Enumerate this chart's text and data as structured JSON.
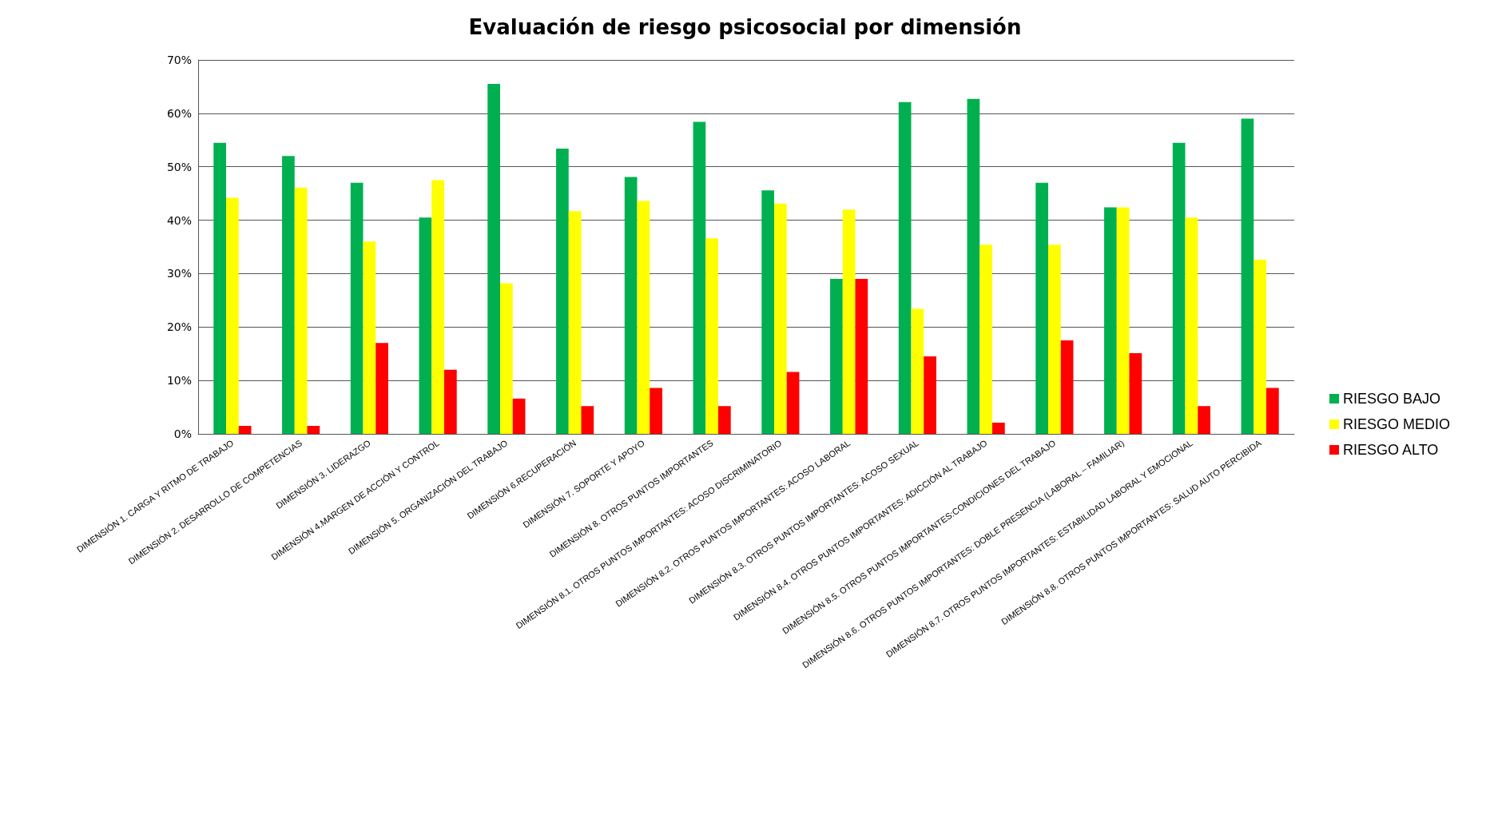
{
  "chart_data": {
    "type": "bar",
    "title": "Evaluación de riesgo psicosocial por dimensión",
    "categories": [
      "DIMENSIÓN 1. CARGA Y RITMO DE TRABAJO",
      "DIMENSIÓN 2. DESARROLLO DE COMPETENCIAS",
      "DIMENSIÓN 3. LIDERAZGO",
      "DIMENSIÓN 4.MARGEN DE ACCIÓN Y CONTROL",
      "DIMENSIÓN 5. ORGANIZACIÓN DEL TRABAJO",
      "DIMENSIÓN 6.RECUPERACIÓN",
      "DIMENSIÓN 7. SOPORTE Y APOYO",
      "DIMENSIÓN 8. OTROS PUNTOS IMPORTANTES",
      "DIMENSIÓN 8.1. OTROS PUNTOS IMPORTANTES: ACOSO DISCRIMINATORIO",
      "DIMENSIÓN 8.2. OTROS PUNTOS IMPORTANTES: ACOSO LABORAL",
      "DIMENSIÓN 8.3. OTROS PUNTOS IMPORTANTES: ACOSO SEXUAL",
      "DIMENSIÓN 8.4. OTROS PUNTOS IMPORTANTES: ADICCIÓN AL TRABAJO",
      "DIMENSIÓN 8.5. OTROS PUNTOS IMPORTANTES:CONDICIONES DEL TRABAJO",
      "DIMENSIÓN 8.6. OTROS PUNTOS IMPORTANTES: DOBLE PRESENCIA (LABORAL – FAMILIAR)",
      "DIMENSIÓN 8.7. OTROS PUNTOS IMPORTANTES: ESTABILIDAD LABORAL Y EMOCIONAL",
      "DIMENSIÓN 8.8. OTROS PUNTOS IMPORTANTES: SALUD AUTO PERCIBIDA"
    ],
    "series": [
      {
        "name": "RIESGO BAJO",
        "color": "#00b050",
        "values": [
          54.5,
          52,
          47,
          40.5,
          65.5,
          53.4,
          48.1,
          58.4,
          45.6,
          29,
          62.1,
          62.7,
          47,
          42.4,
          54.5,
          59
        ]
      },
      {
        "name": "RIESGO MEDIO",
        "color": "#ffff00",
        "values": [
          44.2,
          46.1,
          36,
          47.5,
          28.2,
          41.7,
          43.6,
          36.6,
          43.1,
          42,
          23.4,
          35.4,
          35.4,
          42.4,
          40.5,
          32.6
        ]
      },
      {
        "name": "RIESGO ALTO",
        "color": "#ff0000",
        "values": [
          1.5,
          1.5,
          17,
          12,
          6.6,
          5.2,
          8.6,
          5.2,
          11.6,
          29,
          14.5,
          2.1,
          17.5,
          15.1,
          5.2,
          8.6
        ]
      }
    ],
    "ylim": [
      0,
      70
    ],
    "yticks": [
      {
        "value": 0,
        "label": "0%"
      },
      {
        "value": 10,
        "label": "10%"
      },
      {
        "value": 20,
        "label": "20%"
      },
      {
        "value": 30,
        "label": "30%"
      },
      {
        "value": 40,
        "label": "40%"
      },
      {
        "value": 50,
        "label": "50%"
      },
      {
        "value": 60,
        "label": "60%"
      },
      {
        "value": 70,
        "label": "70%"
      }
    ],
    "grid": "y",
    "legend": "right"
  }
}
